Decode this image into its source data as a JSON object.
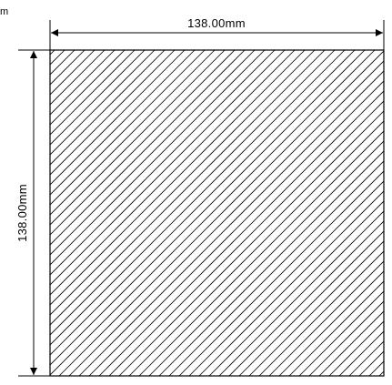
{
  "corner_label": "m",
  "dimensions": {
    "width_label": "138.00mm",
    "height_label": "138.00mm"
  },
  "colors": {
    "line": "#000000",
    "background": "#ffffff"
  }
}
